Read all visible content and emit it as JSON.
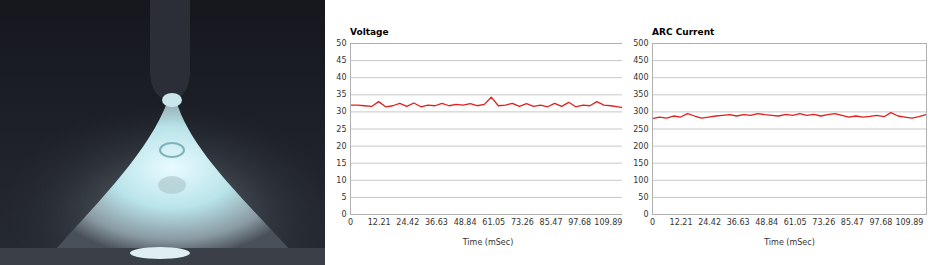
{
  "chart_data": [
    {
      "type": "line",
      "title": "Voltage",
      "x_label": "Time (mSec)",
      "x": [
        0,
        3,
        6,
        9,
        12,
        15,
        18,
        21,
        24,
        27,
        30,
        33,
        36,
        39,
        42,
        45,
        48,
        51,
        54,
        57,
        60,
        63,
        66,
        69,
        72,
        75,
        78,
        81,
        84,
        87,
        90,
        93,
        96,
        99,
        102,
        105,
        108,
        111,
        114,
        117
      ],
      "values": [
        32.0,
        32.0,
        31.8,
        31.6,
        33.0,
        31.5,
        31.8,
        32.5,
        31.6,
        32.6,
        31.5,
        32.0,
        31.8,
        32.5,
        31.8,
        32.2,
        32.0,
        32.4,
        31.8,
        32.2,
        34.3,
        31.8,
        32.0,
        32.5,
        31.6,
        32.4,
        31.6,
        32.0,
        31.5,
        32.5,
        31.6,
        32.8,
        31.5,
        32.0,
        31.8,
        33.0,
        32.0,
        31.8,
        31.5,
        31.2
      ],
      "color": "#e3201b",
      "xlim": [
        0,
        117.2
      ],
      "xticks": [
        0,
        12.21,
        24.42,
        36.63,
        48.84,
        61.05,
        73.26,
        85.47,
        97.68,
        109.89
      ],
      "ylim": [
        0,
        50
      ],
      "yticks": [
        0,
        5,
        10,
        15,
        20,
        25,
        30,
        35,
        40,
        45,
        50
      ],
      "grid": true
    },
    {
      "type": "line",
      "title": "ARC Current",
      "x_label": "Time (mSec)",
      "x": [
        0,
        3,
        6,
        9,
        12,
        15,
        18,
        21,
        24,
        27,
        30,
        33,
        36,
        39,
        42,
        45,
        48,
        51,
        54,
        57,
        60,
        63,
        66,
        69,
        72,
        75,
        78,
        81,
        84,
        87,
        90,
        93,
        96,
        99,
        102,
        105,
        108,
        111,
        114,
        117
      ],
      "values": [
        280,
        285,
        282,
        288,
        285,
        295,
        288,
        282,
        285,
        288,
        290,
        292,
        288,
        292,
        290,
        295,
        292,
        290,
        288,
        293,
        290,
        295,
        290,
        293,
        288,
        292,
        295,
        290,
        285,
        288,
        285,
        287,
        290,
        286,
        298,
        288,
        285,
        282,
        286,
        292
      ],
      "color": "#e3201b",
      "xlim": [
        0,
        117.2
      ],
      "xticks": [
        0,
        12.21,
        24.42,
        36.63,
        48.84,
        61.05,
        73.26,
        85.47,
        97.68,
        109.89
      ],
      "ylim": [
        0,
        500
      ],
      "yticks": [
        0,
        50,
        100,
        150,
        200,
        250,
        300,
        350,
        400,
        450,
        500
      ],
      "grid": true
    }
  ]
}
